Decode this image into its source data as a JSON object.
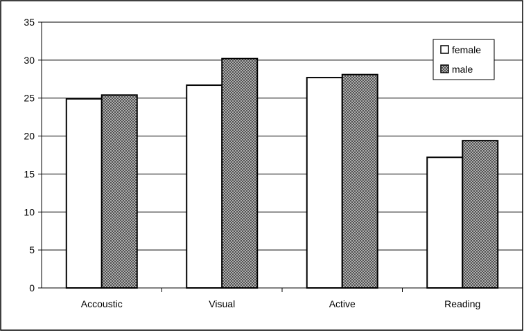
{
  "chart_data": {
    "type": "bar",
    "title": "",
    "xlabel": "",
    "ylabel": "",
    "categories": [
      "Accoustic",
      "Visual",
      "Active",
      "Reading"
    ],
    "series": [
      {
        "name": "female",
        "values": [
          24.9,
          26.7,
          27.7,
          17.2
        ],
        "fill": "#ffffff",
        "pattern": "none"
      },
      {
        "name": "male",
        "values": [
          25.4,
          30.2,
          28.1,
          19.4
        ],
        "fill": "#a0a0a0",
        "pattern": "crosshatch"
      }
    ],
    "ylim": [
      0,
      35
    ],
    "yticks": [
      0,
      5,
      10,
      15,
      20,
      25,
      30,
      35
    ],
    "grid": true,
    "legend_position": "top-right",
    "colors": {
      "bar_outline": "#000000",
      "grid": "#000000",
      "hatch_dark": "#4a4a4a",
      "hatch_light": "#d8d8d8"
    }
  }
}
